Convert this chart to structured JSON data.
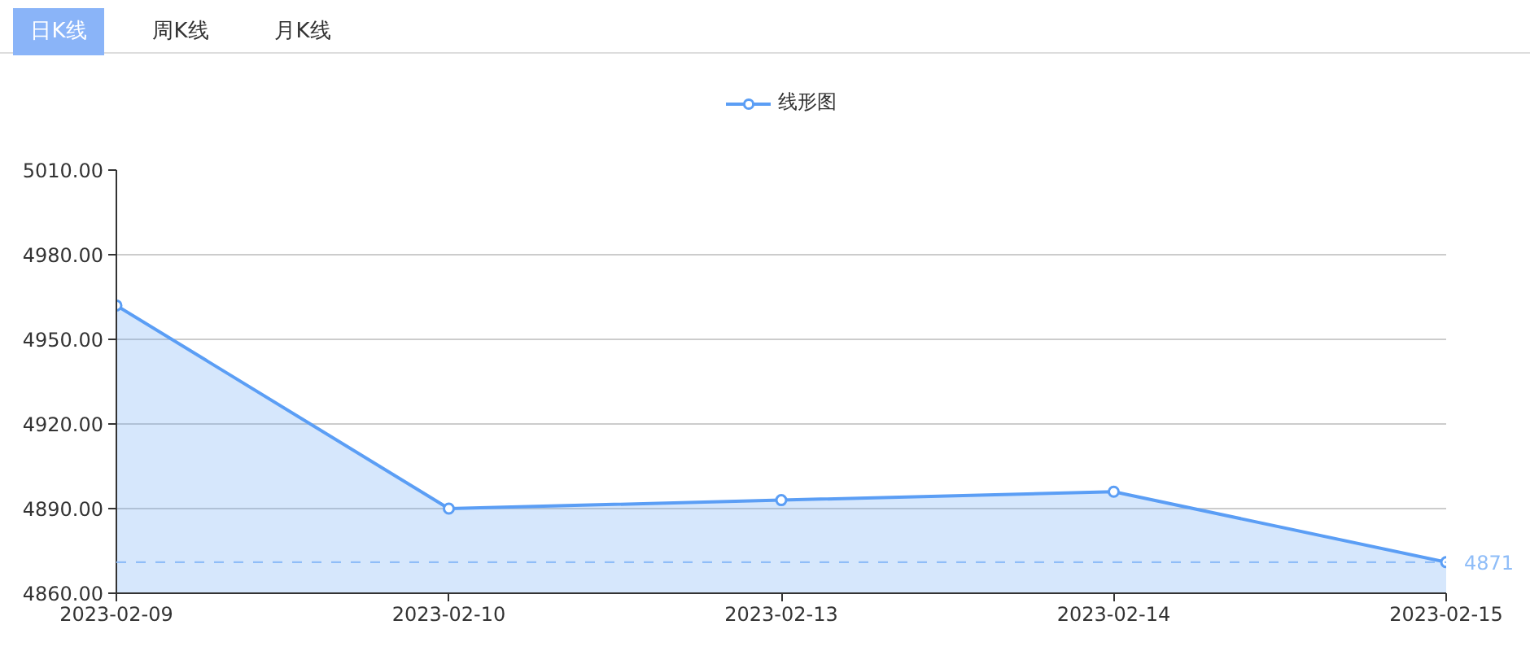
{
  "chart_data": {
    "type": "area",
    "categories": [
      "2023-02-09",
      "2023-02-10",
      "2023-02-13",
      "2023-02-14",
      "2023-02-15"
    ],
    "series": [
      {
        "name": "线形图",
        "color": "#5b9ef5",
        "values": [
          4962,
          4890,
          4893,
          4896,
          4871
        ]
      }
    ],
    "ylim": [
      4860,
      5010
    ],
    "yticks": [
      {
        "value": 4860,
        "label": "4860.00"
      },
      {
        "value": 4890,
        "label": "4890.00"
      },
      {
        "value": 4920,
        "label": "4920.00"
      },
      {
        "value": 4950,
        "label": "4950.00"
      },
      {
        "value": 4980,
        "label": "4980.00"
      },
      {
        "value": 5010,
        "label": "5010.00"
      }
    ],
    "ref_lines": [
      {
        "axis": "y",
        "value": 4871,
        "label": "4871",
        "color": "#8fbdf8",
        "line_style": "dashed"
      }
    ],
    "grid": "y",
    "legend": "top",
    "marker": "circle",
    "line_style": "solid",
    "annotations": [
      "日K线",
      "周K线",
      "月K线"
    ]
  }
}
